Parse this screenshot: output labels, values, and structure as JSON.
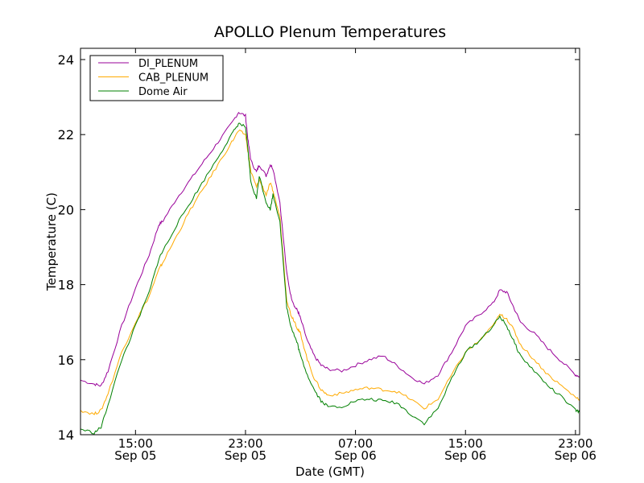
{
  "chart_data": {
    "type": "line",
    "title": "APOLLO Plenum Temperatures",
    "xlabel": "Date (GMT)",
    "ylabel": "Temperature (C)",
    "x_unit": "hours since Sep 05 11:00 GMT",
    "xlim": [
      0,
      36.3
    ],
    "ylim": [
      14,
      24.3
    ],
    "yticks": [
      14,
      16,
      18,
      20,
      22,
      24
    ],
    "xticks": [
      {
        "x": 4,
        "line1": "15:00",
        "line2": "Sep 05"
      },
      {
        "x": 12,
        "line1": "23:00",
        "line2": "Sep 05"
      },
      {
        "x": 20,
        "line1": "07:00",
        "line2": "Sep 06"
      },
      {
        "x": 28,
        "line1": "15:00",
        "line2": "Sep 06"
      },
      {
        "x": 36,
        "line1": "23:00",
        "line2": "Sep 06"
      }
    ],
    "legend_position": "top-left",
    "x": [
      0,
      1,
      1.5,
      2,
      3,
      4,
      5,
      5.7,
      6,
      7,
      8,
      9,
      10,
      11,
      11.5,
      12,
      12.2,
      12.4,
      12.8,
      13,
      13.5,
      13.8,
      14,
      14.5,
      15,
      15.3,
      15.6,
      15.8,
      16,
      16.5,
      17,
      17.5,
      18,
      19,
      20,
      21,
      22,
      23,
      24,
      25,
      26,
      27,
      28,
      29,
      30,
      30.5,
      31,
      31.5,
      32,
      33,
      34,
      35,
      36,
      36.3
    ],
    "series": [
      {
        "name": "DI_PLENUM",
        "color": "#990099",
        "values": [
          15.45,
          15.35,
          15.3,
          15.7,
          16.9,
          17.9,
          18.8,
          19.6,
          19.7,
          20.3,
          20.8,
          21.3,
          21.8,
          22.3,
          22.6,
          22.5,
          21.8,
          21.3,
          21.0,
          21.2,
          20.9,
          21.2,
          21.1,
          20.2,
          18.3,
          17.7,
          17.4,
          17.3,
          17.1,
          16.5,
          16.1,
          15.85,
          15.75,
          15.7,
          15.85,
          16.0,
          16.1,
          15.85,
          15.55,
          15.35,
          15.6,
          16.2,
          16.9,
          17.2,
          17.5,
          17.85,
          17.8,
          17.4,
          17.0,
          16.7,
          16.3,
          15.95,
          15.6,
          15.55
        ]
      },
      {
        "name": "CAB_PLENUM",
        "color": "#ffaa00",
        "values": [
          14.65,
          14.55,
          14.65,
          15.1,
          16.2,
          17.0,
          17.7,
          18.4,
          18.6,
          19.3,
          20.0,
          20.6,
          21.2,
          21.8,
          22.1,
          22.0,
          21.5,
          21.0,
          20.6,
          20.8,
          20.4,
          20.7,
          20.5,
          19.8,
          17.6,
          17.2,
          17.0,
          16.8,
          16.7,
          16.0,
          15.5,
          15.2,
          15.05,
          15.1,
          15.2,
          15.25,
          15.2,
          15.15,
          14.95,
          14.7,
          14.95,
          15.6,
          16.2,
          16.5,
          16.9,
          17.2,
          17.1,
          16.8,
          16.4,
          16.0,
          15.6,
          15.3,
          15.0,
          14.95
        ]
      },
      {
        "name": "Dome Air",
        "color": "#008000",
        "values": [
          14.15,
          14.05,
          14.2,
          14.8,
          16.0,
          16.9,
          17.8,
          18.7,
          18.9,
          19.6,
          20.2,
          20.8,
          21.4,
          22.0,
          22.3,
          22.2,
          21.5,
          20.7,
          20.3,
          20.9,
          20.2,
          20.0,
          20.4,
          19.7,
          17.4,
          16.9,
          16.6,
          16.4,
          16.1,
          15.6,
          15.2,
          14.9,
          14.75,
          14.75,
          14.9,
          14.95,
          14.9,
          14.85,
          14.55,
          14.3,
          14.7,
          15.5,
          16.2,
          16.5,
          16.9,
          17.15,
          16.9,
          16.5,
          16.1,
          15.7,
          15.3,
          15.0,
          14.65,
          14.6
        ]
      }
    ]
  }
}
